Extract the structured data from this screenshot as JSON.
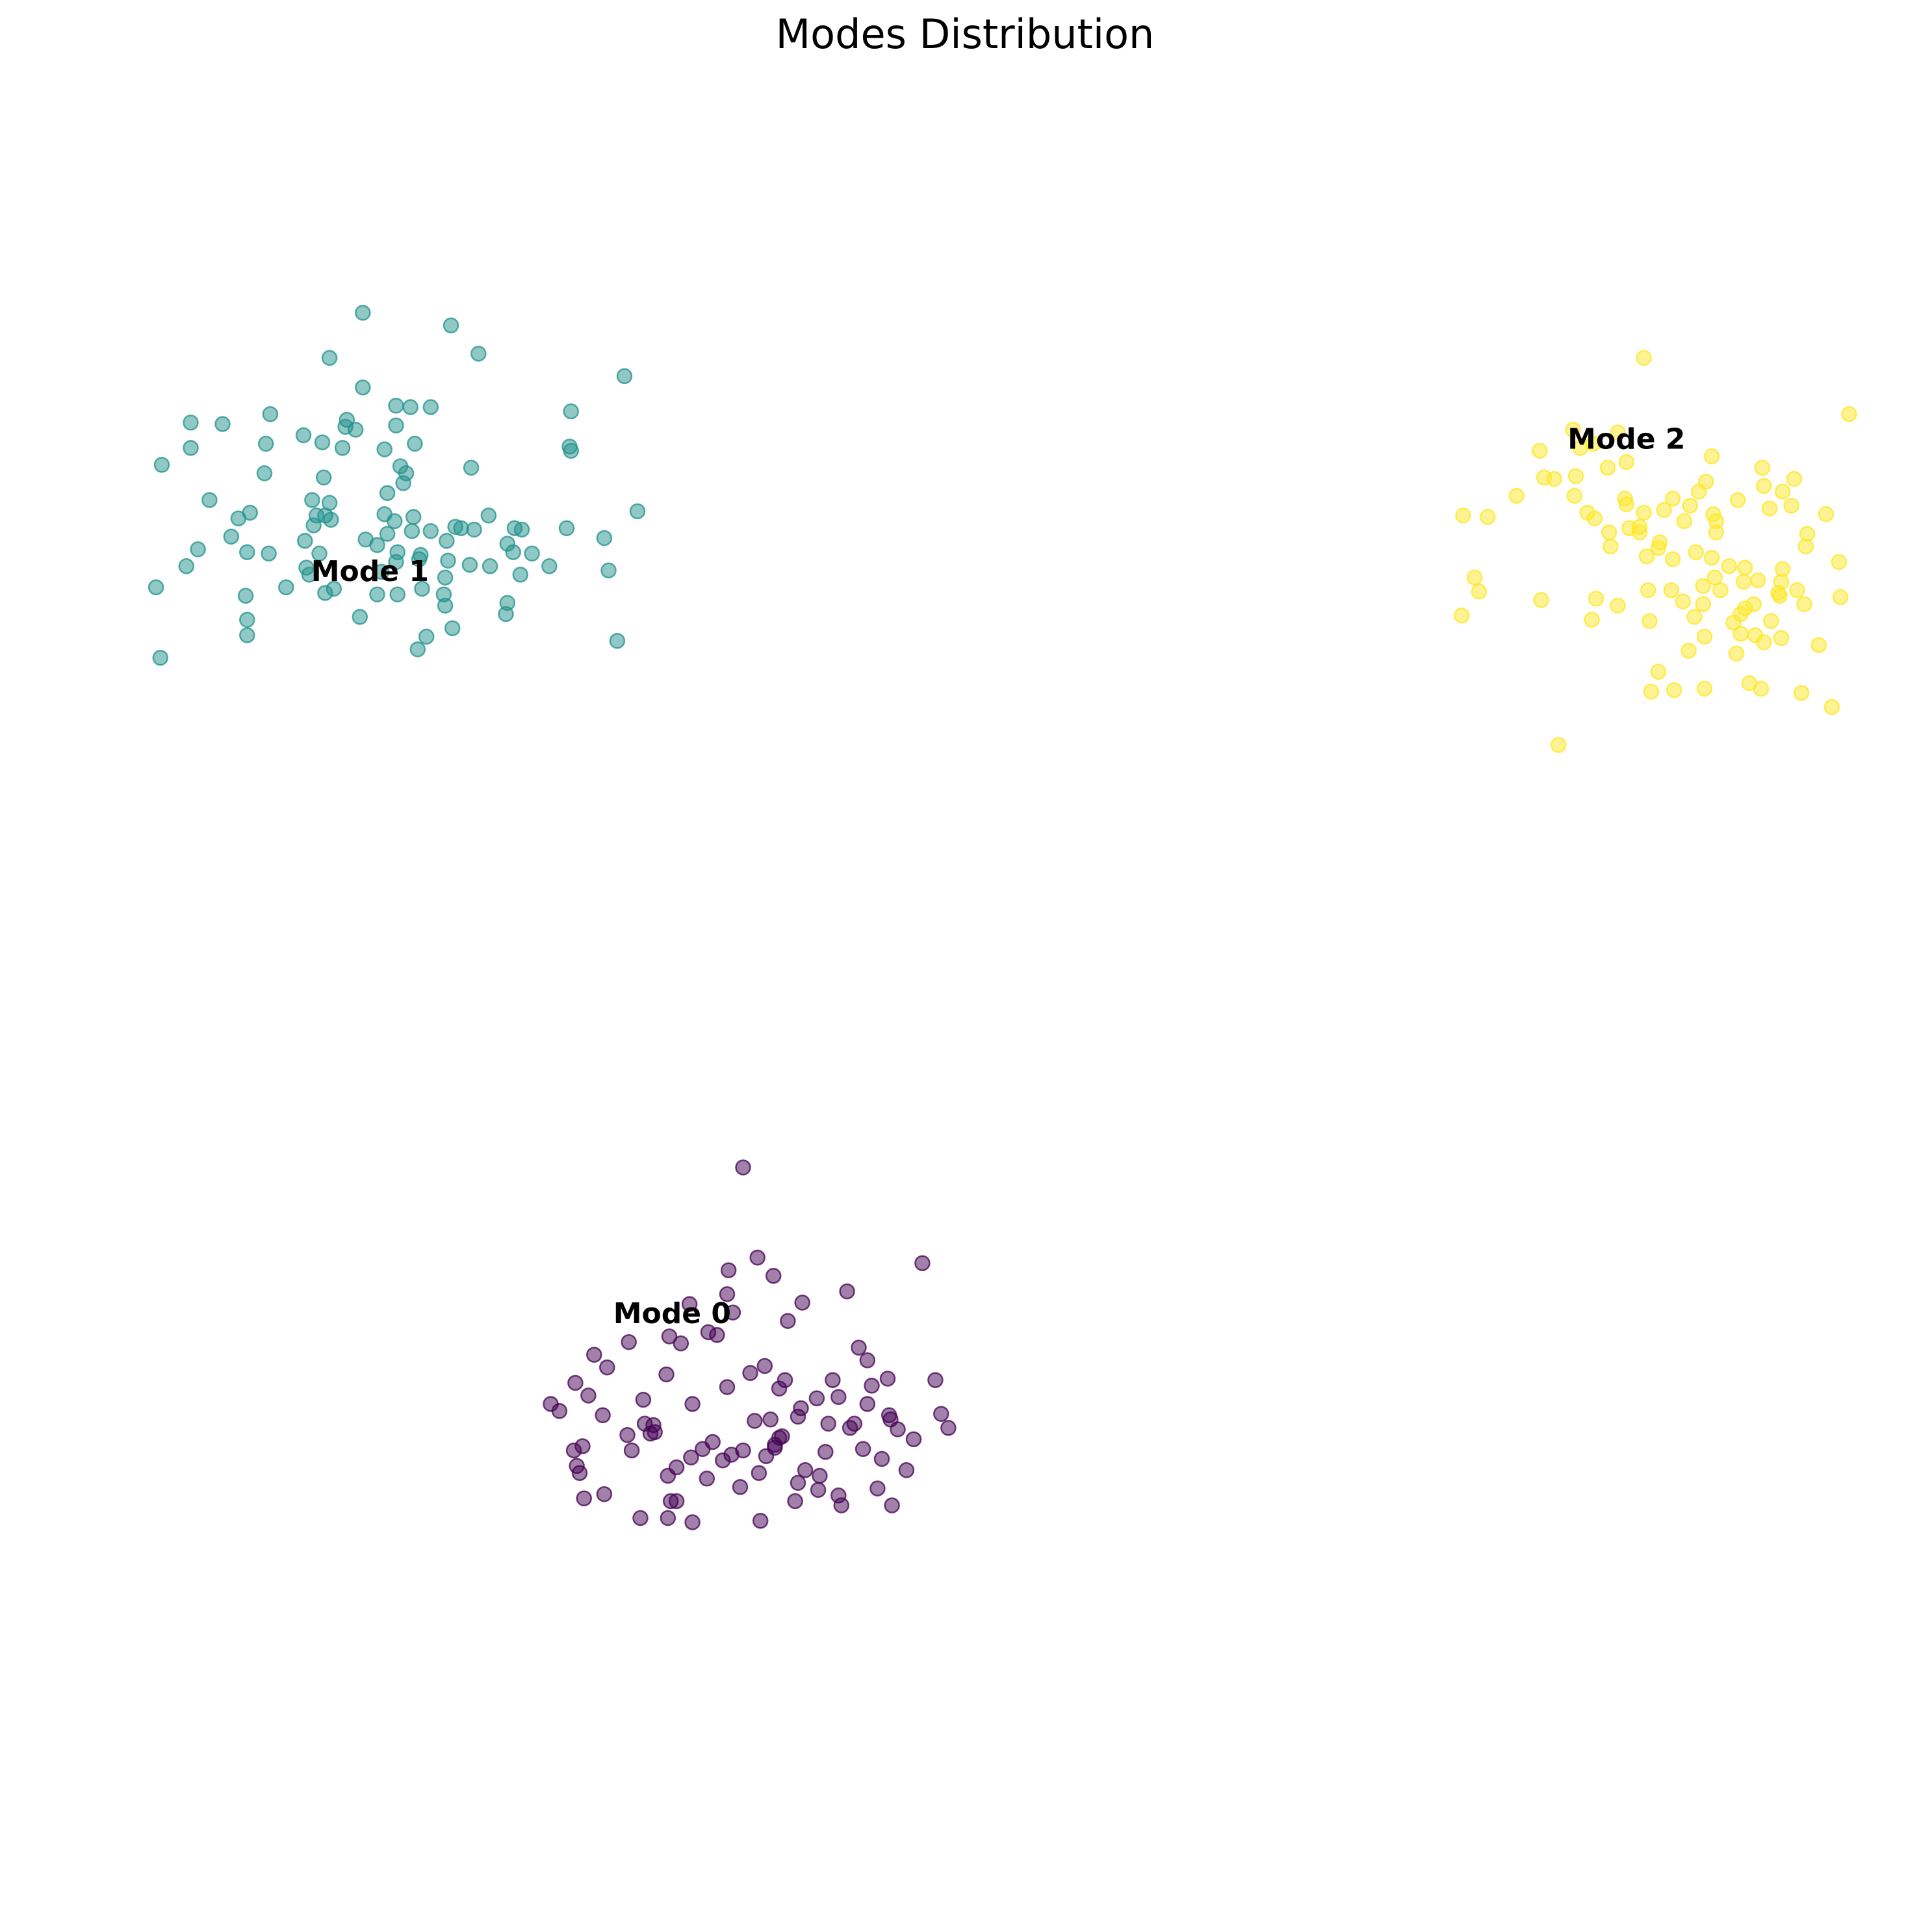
{
  "chart_data": {
    "type": "scatter",
    "title": "Modes Distribution",
    "xlabel": "",
    "ylabel": "",
    "axes_visible": false,
    "grid": false,
    "legend": "none",
    "xlim": [
      -6.0,
      6.0
    ],
    "ylim": [
      -6.0,
      6.0
    ],
    "marker_alpha": 0.5,
    "series": [
      {
        "name": "Mode 0",
        "color": "#440154",
        "label_position": [
          -2.07,
          -2.28
        ],
        "points": [
          [
            -1.68,
            -1.96
          ],
          [
            -1.48,
            -1.87
          ],
          [
            -1.27,
            -2.32
          ],
          [
            -0.34,
            -1.91
          ],
          [
            -1.69,
            -2.13
          ],
          [
            -1.37,
            -2.0
          ],
          [
            -0.86,
            -2.11
          ],
          [
            -1.17,
            -2.19
          ],
          [
            -1.82,
            -2.4
          ],
          [
            -0.72,
            -2.6
          ],
          [
            -2.65,
            -2.85
          ],
          [
            -2.09,
            -2.43
          ],
          [
            -1.58,
            -1.23
          ],
          [
            -2.61,
            -2.56
          ],
          [
            -1.76,
            -2.42
          ],
          [
            -1.65,
            -2.26
          ],
          [
            -2.52,
            -2.65
          ],
          [
            -0.78,
            -2.51
          ],
          [
            -0.58,
            -2.73
          ],
          [
            -0.69,
            -2.78
          ],
          [
            -2.91,
            -2.91
          ],
          [
            -1.29,
            -2.74
          ],
          [
            -2.37,
            -2.47
          ],
          [
            -2.01,
            -2.48
          ],
          [
            -1.69,
            -2.79
          ],
          [
            -2.55,
            -2.99
          ],
          [
            -0.75,
            -3.23
          ],
          [
            -0.92,
            -2.86
          ],
          [
            -0.56,
            -3.02
          ],
          [
            -0.99,
            -3.05
          ],
          [
            -1.43,
            -2.64
          ],
          [
            -2.11,
            -2.7
          ],
          [
            -2.74,
            -2.76
          ],
          [
            -0.72,
            -2.91
          ],
          [
            -1.33,
            -3.15
          ],
          [
            -0.25,
            -2.74
          ],
          [
            -1.42,
            -3.28
          ],
          [
            -1.93,
            -2.91
          ],
          [
            -2.26,
            -3.05
          ],
          [
            -1.79,
            -3.18
          ],
          [
            -2.2,
            -3.06
          ],
          [
            -1.5,
            -3.03
          ],
          [
            -2.69,
            -3.21
          ],
          [
            -1.39,
            -3.02
          ],
          [
            -2.1,
            -3.42
          ],
          [
            -0.84,
            -3.08
          ],
          [
            -1.2,
            -3.0
          ],
          [
            -2.38,
            -3.13
          ],
          [
            -1.58,
            -3.24
          ],
          [
            -1.01,
            -3.25
          ],
          [
            -1.2,
            -3.47
          ],
          [
            -0.9,
            -3.63
          ],
          [
            -0.55,
            -3.63
          ],
          [
            -0.92,
            -3.56
          ],
          [
            -1.36,
            -3.22
          ],
          [
            -1.86,
            -3.23
          ],
          [
            -2.35,
            -3.24
          ],
          [
            -1.93,
            -3.75
          ],
          [
            -2.08,
            -3.6
          ],
          [
            -2.54,
            -3.55
          ],
          [
            -2.73,
            -3.35
          ],
          [
            -1.22,
            -3.6
          ],
          [
            -1.6,
            -3.5
          ],
          [
            -1.06,
            -3.52
          ],
          [
            -1.83,
            -3.44
          ],
          [
            -1.36,
            -3.2
          ],
          [
            -1.15,
            -3.38
          ],
          [
            -1.72,
            -3.31
          ],
          [
            -2.22,
            -3.12
          ],
          [
            -1.94,
            -3.29
          ],
          [
            -0.4,
            -3.16
          ],
          [
            -0.21,
            -2.98
          ],
          [
            -1.47,
            -3.4
          ],
          [
            -1.31,
            -3.14
          ],
          [
            -2.04,
            -3.36
          ],
          [
            -0.62,
            -3.3
          ],
          [
            -2.85,
            -2.96
          ],
          [
            -0.57,
            -2.99
          ],
          [
            -0.65,
            -3.51
          ],
          [
            -1.07,
            -2.87
          ],
          [
            -1.53,
            -2.69
          ],
          [
            -2.19,
            -3.11
          ],
          [
            -1.33,
            -2.8
          ],
          [
            -1.18,
            -2.94
          ],
          [
            -0.51,
            -3.09
          ],
          [
            -2.27,
            -2.88
          ],
          [
            -1.95,
            -2.2
          ],
          [
            -2.04,
            -3.6
          ],
          [
            -2.75,
            -3.24
          ],
          [
            -0.96,
            -2.74
          ],
          [
            -2.71,
            -3.4
          ],
          [
            -2.29,
            -3.72
          ],
          [
            -1.46,
            -3.74
          ],
          [
            -1.05,
            -3.42
          ],
          [
            -2.68,
            -3.58
          ],
          [
            -0.81,
            -3.05
          ],
          [
            -0.16,
            -3.08
          ],
          [
            -1.66,
            -3.27
          ],
          [
            -0.45,
            -3.38
          ],
          [
            -2.1,
            -3.72
          ]
        ]
      },
      {
        "name": "Mode 1",
        "color": "#21918c",
        "label_position": [
          -4.16,
          2.99
        ],
        "points": [
          [
            -4.21,
            4.84
          ],
          [
            -3.6,
            4.75
          ],
          [
            -4.44,
            4.52
          ],
          [
            -3.74,
            4.17
          ],
          [
            -3.88,
            4.17
          ],
          [
            -3.98,
            4.18
          ],
          [
            -3.41,
            4.55
          ],
          [
            -4.32,
            4.08
          ],
          [
            -3.98,
            4.04
          ],
          [
            -4.33,
            4.03
          ],
          [
            -3.85,
            3.91
          ],
          [
            -4.06,
            3.87
          ],
          [
            -3.93,
            3.63
          ],
          [
            -3.95,
            3.75
          ],
          [
            -4.04,
            3.56
          ],
          [
            -4.48,
            3.67
          ],
          [
            -4.44,
            3.49
          ],
          [
            -4.53,
            3.4
          ],
          [
            -4.06,
            3.41
          ],
          [
            -3.99,
            3.36
          ],
          [
            -3.87,
            3.29
          ],
          [
            -3.74,
            3.29
          ],
          [
            -3.63,
            3.22
          ],
          [
            -3.53,
            3.31
          ],
          [
            -3.34,
            3.4
          ],
          [
            -3.44,
            3.3
          ],
          [
            -3.21,
            3.2
          ],
          [
            -3.12,
            2.98
          ],
          [
            -3.33,
            3.04
          ],
          [
            -3.47,
            3.05
          ],
          [
            -3.62,
            3.08
          ],
          [
            -3.81,
            3.12
          ],
          [
            -3.98,
            3.07
          ],
          [
            -4.08,
            3.0
          ],
          [
            -4.41,
            2.88
          ],
          [
            -4.74,
            2.89
          ],
          [
            -3.64,
            2.76
          ],
          [
            -4.23,
            2.68
          ],
          [
            -4.11,
            3.19
          ],
          [
            -3.97,
            3.14
          ],
          [
            -4.04,
            3.27
          ],
          [
            -3.82,
            3.09
          ],
          [
            -2.78,
            3.89
          ],
          [
            -2.77,
            4.14
          ],
          [
            -2.4,
            4.39
          ],
          [
            -4.85,
            4.12
          ],
          [
            -5.18,
            4.05
          ],
          [
            -5.4,
            4.06
          ],
          [
            -5.4,
            3.88
          ],
          [
            -4.88,
            3.91
          ],
          [
            -4.49,
            3.92
          ],
          [
            -4.26,
            4.01
          ],
          [
            -4.62,
            3.97
          ],
          [
            -4.35,
            3.88
          ],
          [
            -4.89,
            3.7
          ],
          [
            -5.6,
            3.76
          ],
          [
            -5.27,
            3.51
          ],
          [
            -4.99,
            3.42
          ],
          [
            -4.56,
            3.51
          ],
          [
            -4.47,
            3.4
          ],
          [
            -4.55,
            3.33
          ],
          [
            -5.12,
            3.25
          ],
          [
            -5.35,
            3.16
          ],
          [
            -5.43,
            3.04
          ],
          [
            -5.01,
            3.14
          ],
          [
            -4.51,
            3.13
          ],
          [
            -4.6,
            3.03
          ],
          [
            -5.02,
            2.83
          ],
          [
            -5.64,
            2.89
          ],
          [
            -5.01,
            2.66
          ],
          [
            -5.01,
            2.55
          ],
          [
            -5.61,
            2.39
          ],
          [
            -3.83,
            2.45
          ],
          [
            -3.77,
            2.54
          ],
          [
            -3.21,
            2.78
          ],
          [
            -2.31,
            3.43
          ],
          [
            -2.45,
            2.51
          ],
          [
            -3.22,
            2.7
          ],
          [
            -3.17,
            3.14
          ],
          [
            -3.04,
            3.13
          ],
          [
            -2.92,
            3.04
          ],
          [
            -2.8,
            3.31
          ],
          [
            -2.54,
            3.24
          ],
          [
            -3.16,
            3.31
          ],
          [
            -3.57,
            3.32
          ],
          [
            -2.51,
            3.01
          ],
          [
            -3.8,
            2.88
          ],
          [
            -3.65,
            2.84
          ],
          [
            -3.64,
            2.96
          ],
          [
            -3.97,
            2.84
          ],
          [
            -4.11,
            2.84
          ],
          [
            -4.47,
            2.85
          ],
          [
            -4.86,
            3.13
          ],
          [
            -4.61,
            3.22
          ],
          [
            -4.43,
            3.37
          ],
          [
            -5.07,
            3.38
          ],
          [
            -4.19,
            3.23
          ],
          [
            -3.86,
            3.39
          ],
          [
            -3.46,
            3.74
          ],
          [
            -2.77,
            3.86
          ],
          [
            -3.11,
            3.3
          ],
          [
            -3.91,
            3.7
          ],
          [
            -4.58,
            2.98
          ],
          [
            -3.59,
            2.6
          ],
          [
            -4.21,
            4.31
          ]
        ]
      },
      {
        "name": "Mode 2",
        "color": "#fde725",
        "label_position": [
          4.53,
          3.93
        ],
        "points": [
          [
            4.65,
            4.52
          ],
          [
            6.07,
            4.12
          ],
          [
            4.16,
            4.01
          ],
          [
            4.3,
            3.91
          ],
          [
            4.47,
            3.99
          ],
          [
            3.93,
            3.86
          ],
          [
            5.69,
            3.66
          ],
          [
            5.48,
            3.61
          ],
          [
            5.08,
            3.64
          ],
          [
            5.61,
            3.57
          ],
          [
            5.3,
            3.51
          ],
          [
            4.52,
            3.52
          ],
          [
            4.97,
            3.47
          ],
          [
            4.79,
            3.44
          ],
          [
            5.13,
            3.41
          ],
          [
            5.15,
            3.36
          ],
          [
            4.65,
            3.42
          ],
          [
            5.52,
            3.45
          ],
          [
            5.91,
            3.41
          ],
          [
            4.85,
            3.52
          ],
          [
            5.03,
            3.57
          ],
          [
            4.75,
            3.17
          ],
          [
            4.76,
            3.21
          ],
          [
            5.01,
            3.14
          ],
          [
            5.12,
            3.1
          ],
          [
            5.24,
            3.04
          ],
          [
            5.35,
            3.03
          ],
          [
            5.61,
            3.02
          ],
          [
            5.77,
            3.18
          ],
          [
            5.44,
            2.94
          ],
          [
            5.6,
            2.93
          ],
          [
            4.92,
            2.79
          ],
          [
            5.06,
            2.77
          ],
          [
            5.35,
            2.74
          ],
          [
            5.53,
            2.65
          ],
          [
            5.32,
            2.7
          ],
          [
            5.42,
            2.55
          ],
          [
            5.6,
            2.53
          ],
          [
            4.75,
            2.29
          ],
          [
            5.27,
            2.64
          ],
          [
            5.32,
            2.56
          ],
          [
            5.0,
            2.68
          ],
          [
            4.29,
            2.66
          ],
          [
            3.39,
            2.69
          ],
          [
            3.51,
            2.86
          ],
          [
            3.48,
            2.96
          ],
          [
            3.94,
            2.8
          ],
          [
            4.32,
            2.81
          ],
          [
            4.47,
            2.76
          ],
          [
            4.68,
            2.87
          ],
          [
            4.84,
            2.87
          ],
          [
            5.06,
            2.9
          ],
          [
            5.18,
            2.87
          ],
          [
            5.41,
            2.77
          ],
          [
            5.58,
            2.85
          ],
          [
            5.71,
            2.87
          ],
          [
            6.0,
            3.07
          ],
          [
            5.78,
            3.27
          ],
          [
            5.67,
            3.47
          ],
          [
            5.47,
            3.74
          ],
          [
            4.4,
            3.74
          ],
          [
            4.18,
            3.68
          ],
          [
            3.96,
            3.67
          ],
          [
            3.77,
            3.54
          ],
          [
            3.57,
            3.39
          ],
          [
            4.26,
            3.42
          ],
          [
            4.17,
            3.54
          ],
          [
            4.41,
            3.28
          ],
          [
            4.55,
            3.31
          ],
          [
            4.67,
            3.11
          ],
          [
            4.85,
            3.09
          ],
          [
            5.14,
            2.96
          ],
          [
            5.34,
            2.93
          ],
          [
            5.59,
            2.83
          ],
          [
            5.76,
            2.77
          ],
          [
            5.48,
            2.5
          ],
          [
            5.29,
            2.42
          ],
          [
            5.07,
            2.17
          ],
          [
            4.86,
            2.16
          ],
          [
            4.7,
            2.15
          ],
          [
            5.07,
            2.54
          ],
          [
            5.38,
            2.21
          ],
          [
            5.74,
            2.14
          ],
          [
            5.95,
            2.04
          ],
          [
            6.01,
            2.82
          ],
          [
            4.53,
            3.78
          ],
          [
            4.21,
            3.88
          ],
          [
            4.03,
            3.66
          ],
          [
            4.53,
            3.48
          ],
          [
            4.93,
            3.36
          ],
          [
            5.15,
            3.28
          ],
          [
            4.31,
            3.38
          ],
          [
            4.62,
            3.32
          ],
          [
            4.42,
            3.18
          ],
          [
            4.69,
            2.65
          ],
          [
            4.96,
            2.44
          ],
          [
            3.4,
            3.4
          ],
          [
            5.12,
            3.82
          ],
          [
            5.86,
            2.48
          ],
          [
            4.06,
            1.77
          ],
          [
            5.46,
            2.17
          ],
          [
            4.62,
            3.28
          ]
        ]
      }
    ]
  }
}
